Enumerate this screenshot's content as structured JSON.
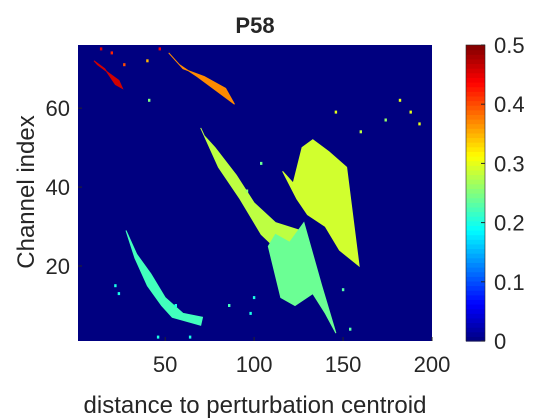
{
  "chart_data": {
    "type": "heatmap",
    "title": "P58",
    "xlabel": "distance to perturbation centroid",
    "ylabel": "Channel index",
    "xlim": [
      1,
      200
    ],
    "ylim": [
      1,
      76
    ],
    "xticks": [
      50,
      100,
      150,
      200
    ],
    "yticks": [
      20,
      40,
      60
    ],
    "colorbar": {
      "colormap": "jet",
      "limits": [
        0,
        0.5
      ],
      "ticks": [
        0,
        0.1,
        0.2,
        0.3,
        0.4,
        0.5
      ]
    },
    "background_value": 0,
    "regions": [
      {
        "label": "upper-left red streak",
        "value": 0.46,
        "points": [
          [
            10,
            72
          ],
          [
            16,
            70
          ],
          [
            22,
            66
          ],
          [
            26,
            65
          ],
          [
            24,
            67
          ],
          [
            18,
            69
          ],
          [
            12,
            71
          ]
        ]
      },
      {
        "label": "upper yellow-orange streak",
        "value": 0.37,
        "points": [
          [
            52,
            74
          ],
          [
            58,
            71
          ],
          [
            68,
            68
          ],
          [
            80,
            64
          ],
          [
            89,
            61
          ],
          [
            84,
            65
          ],
          [
            72,
            68
          ],
          [
            60,
            70
          ],
          [
            54,
            73
          ]
        ]
      },
      {
        "label": "long diagonal band",
        "value": 0.28,
        "points": [
          [
            70,
            55
          ],
          [
            80,
            45
          ],
          [
            92,
            37
          ],
          [
            104,
            28
          ],
          [
            118,
            22
          ],
          [
            128,
            24
          ],
          [
            126,
            29
          ],
          [
            112,
            31
          ],
          [
            100,
            36
          ],
          [
            90,
            43
          ],
          [
            78,
            50
          ],
          [
            72,
            53
          ]
        ]
      },
      {
        "label": "central right blob",
        "value": 0.29,
        "points": [
          [
            122,
            41
          ],
          [
            127,
            50
          ],
          [
            133,
            52
          ],
          [
            142,
            49
          ],
          [
            152,
            45
          ],
          [
            159,
            20
          ],
          [
            148,
            24
          ],
          [
            140,
            30
          ],
          [
            130,
            33
          ],
          [
            124,
            37
          ],
          [
            116,
            44
          ]
        ]
      },
      {
        "label": "lower middle region",
        "value": 0.24,
        "points": [
          [
            108,
            25
          ],
          [
            115,
            12
          ],
          [
            123,
            10
          ],
          [
            133,
            13
          ],
          [
            140,
            8
          ],
          [
            146,
            3
          ],
          [
            138,
            15
          ],
          [
            128,
            31
          ],
          [
            120,
            26
          ],
          [
            112,
            28
          ]
        ]
      },
      {
        "label": "lower left band",
        "value": 0.22,
        "points": [
          [
            28,
            29
          ],
          [
            34,
            23
          ],
          [
            42,
            18
          ],
          [
            50,
            12
          ],
          [
            60,
            8
          ],
          [
            71,
            7
          ],
          [
            70,
            5
          ],
          [
            62,
            6
          ],
          [
            54,
            7
          ],
          [
            48,
            10
          ],
          [
            40,
            15
          ],
          [
            33,
            22
          ]
        ]
      }
    ],
    "specks": [
      {
        "x": 14,
        "y": 75,
        "value": 0.45
      },
      {
        "x": 20,
        "y": 74,
        "value": 0.42
      },
      {
        "x": 27,
        "y": 71,
        "value": 0.4
      },
      {
        "x": 40,
        "y": 72,
        "value": 0.35
      },
      {
        "x": 47,
        "y": 75,
        "value": 0.44
      },
      {
        "x": 41,
        "y": 62,
        "value": 0.25
      },
      {
        "x": 146,
        "y": 59,
        "value": 0.3
      },
      {
        "x": 160,
        "y": 54,
        "value": 0.28
      },
      {
        "x": 174,
        "y": 57,
        "value": 0.26
      },
      {
        "x": 182,
        "y": 62,
        "value": 0.3
      },
      {
        "x": 188,
        "y": 59,
        "value": 0.3
      },
      {
        "x": 193,
        "y": 56,
        "value": 0.3
      },
      {
        "x": 150,
        "y": 14,
        "value": 0.23
      },
      {
        "x": 154,
        "y": 4,
        "value": 0.23
      },
      {
        "x": 100,
        "y": 12,
        "value": 0.2
      },
      {
        "x": 98,
        "y": 8,
        "value": 0.2
      },
      {
        "x": 56,
        "y": 10,
        "value": 0.2
      },
      {
        "x": 22,
        "y": 15,
        "value": 0.2
      },
      {
        "x": 24,
        "y": 13,
        "value": 0.2
      },
      {
        "x": 86,
        "y": 10,
        "value": 0.22
      },
      {
        "x": 46,
        "y": 2,
        "value": 0.2
      },
      {
        "x": 64,
        "y": 2,
        "value": 0.2
      },
      {
        "x": 104,
        "y": 46,
        "value": 0.24
      },
      {
        "x": 96,
        "y": 39,
        "value": 0.26
      }
    ]
  }
}
